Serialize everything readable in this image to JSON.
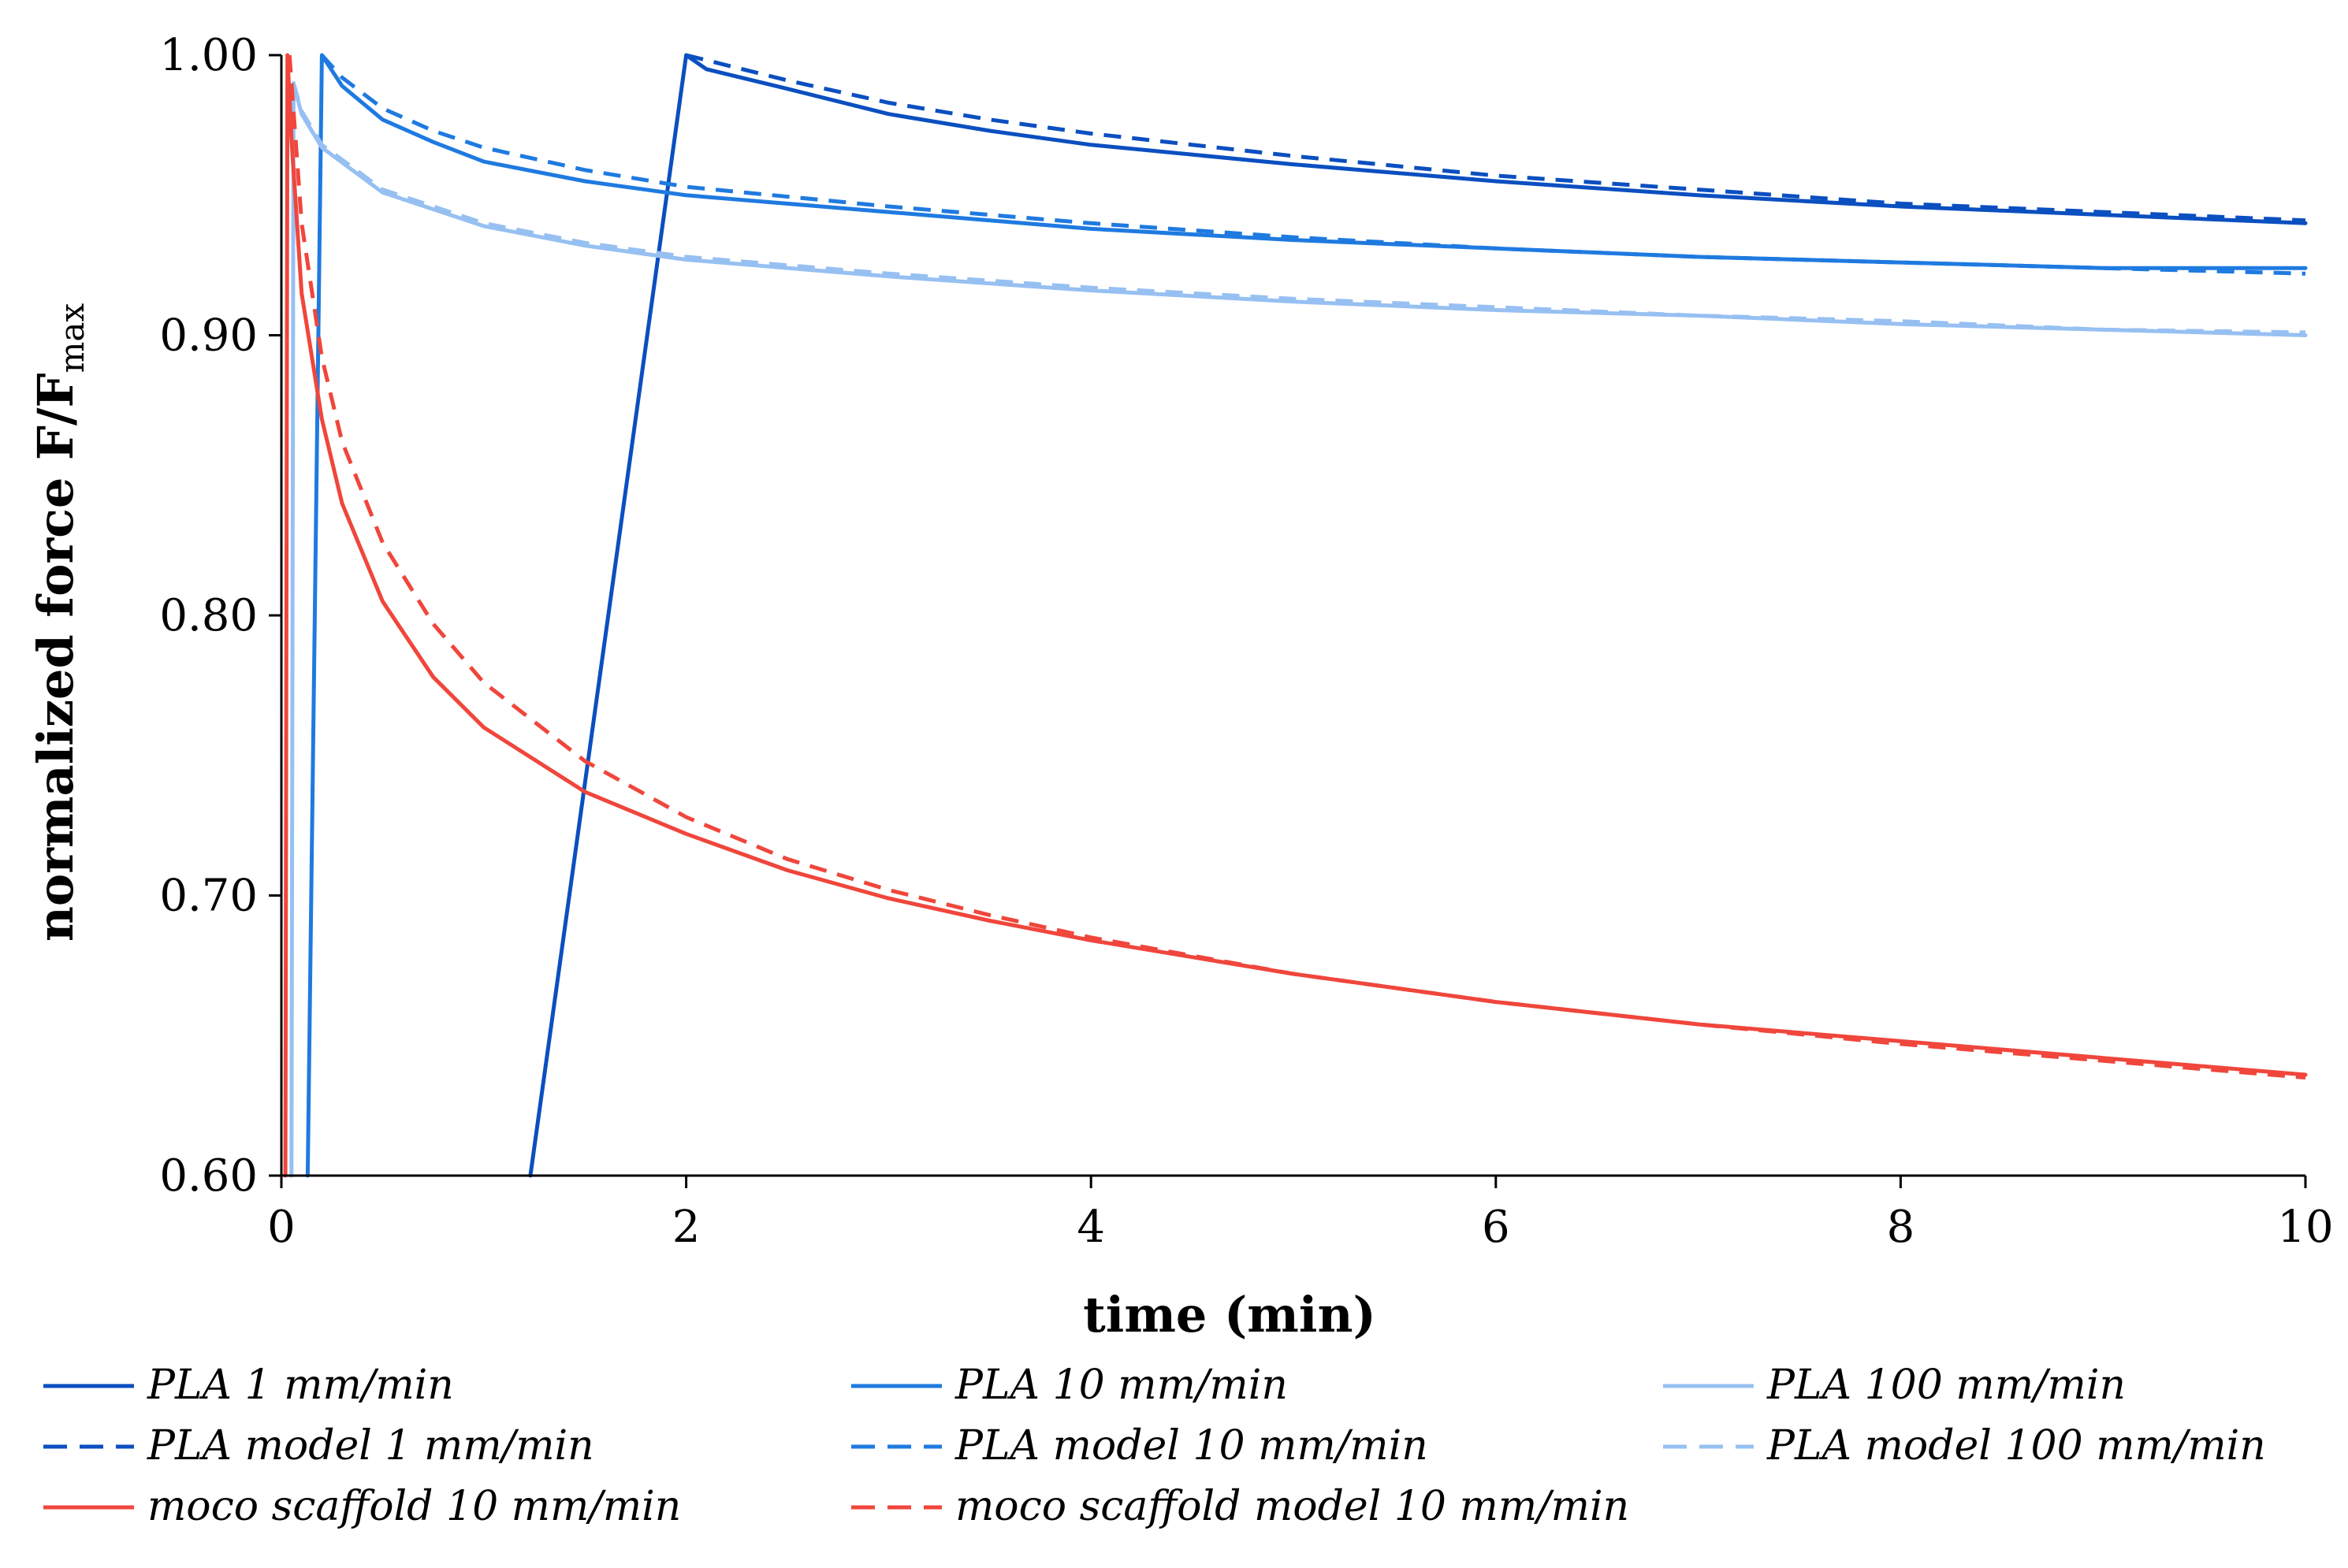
{
  "chart_data": {
    "type": "line",
    "title": "",
    "xlabel": "time (min)",
    "ylabel_main": "normalized force F/F",
    "ylabel_sub": "max",
    "xlim": [
      0,
      10
    ],
    "ylim": [
      0.6,
      1.0
    ],
    "xticks": [
      0,
      2,
      4,
      6,
      8,
      10
    ],
    "xtick_labels": [
      "0",
      "2",
      "4",
      "6",
      "8",
      "10"
    ],
    "yticks": [
      0.6,
      0.7,
      0.8,
      0.9,
      1.0
    ],
    "ytick_labels": [
      "0.60",
      "0.70",
      "0.80",
      "0.90",
      "1.00"
    ],
    "grid": false,
    "legend_position": "bottom",
    "series": [
      {
        "name": "PLA 1 mm/min",
        "color": "#0B4FC0",
        "dash": "solid",
        "points": [
          [
            1.23,
            0.6
          ],
          [
            2.0,
            1.0
          ],
          [
            2.1,
            0.995
          ],
          [
            2.5,
            0.988
          ],
          [
            3.0,
            0.979
          ],
          [
            3.5,
            0.973
          ],
          [
            4.0,
            0.968
          ],
          [
            5.0,
            0.961
          ],
          [
            6.0,
            0.955
          ],
          [
            7.0,
            0.95
          ],
          [
            8.0,
            0.946
          ],
          [
            9.0,
            0.943
          ],
          [
            10.0,
            0.94
          ]
        ]
      },
      {
        "name": "PLA 10 mm/min",
        "color": "#1F7AE0",
        "dash": "solid",
        "points": [
          [
            0.13,
            0.6
          ],
          [
            0.2,
            1.0
          ],
          [
            0.3,
            0.989
          ],
          [
            0.5,
            0.977
          ],
          [
            0.75,
            0.969
          ],
          [
            1.0,
            0.962
          ],
          [
            1.5,
            0.955
          ],
          [
            2.0,
            0.95
          ],
          [
            3.0,
            0.944
          ],
          [
            4.0,
            0.938
          ],
          [
            5.0,
            0.934
          ],
          [
            6.0,
            0.931
          ],
          [
            7.0,
            0.928
          ],
          [
            8.0,
            0.926
          ],
          [
            9.0,
            0.924
          ],
          [
            10.0,
            0.924
          ]
        ]
      },
      {
        "name": "PLA 100 mm/min",
        "color": "#97C0F2",
        "dash": "solid",
        "points": [
          [
            0.05,
            0.6
          ],
          [
            0.06,
            0.99
          ],
          [
            0.1,
            0.979
          ],
          [
            0.2,
            0.967
          ],
          [
            0.5,
            0.951
          ],
          [
            1.0,
            0.939
          ],
          [
            1.5,
            0.932
          ],
          [
            2.0,
            0.927
          ],
          [
            3.0,
            0.921
          ],
          [
            4.0,
            0.916
          ],
          [
            5.0,
            0.912
          ],
          [
            6.0,
            0.909
          ],
          [
            7.0,
            0.907
          ],
          [
            8.0,
            0.904
          ],
          [
            9.0,
            0.902
          ],
          [
            10.0,
            0.9
          ]
        ]
      },
      {
        "name": "PLA model 1 mm/min",
        "color": "#0B4FC0",
        "dash": "dashed",
        "points": [
          [
            2.0,
            1.0
          ],
          [
            2.5,
            0.991
          ],
          [
            3.0,
            0.983
          ],
          [
            3.5,
            0.977
          ],
          [
            4.0,
            0.972
          ],
          [
            5.0,
            0.964
          ],
          [
            6.0,
            0.957
          ],
          [
            7.0,
            0.952
          ],
          [
            8.0,
            0.947
          ],
          [
            9.0,
            0.944
          ],
          [
            10.0,
            0.941
          ]
        ]
      },
      {
        "name": "PLA model 10 mm/min",
        "color": "#1F7AE0",
        "dash": "dashed",
        "points": [
          [
            0.2,
            1.0
          ],
          [
            0.3,
            0.992
          ],
          [
            0.5,
            0.981
          ],
          [
            0.75,
            0.973
          ],
          [
            1.0,
            0.967
          ],
          [
            1.5,
            0.959
          ],
          [
            2.0,
            0.953
          ],
          [
            3.0,
            0.946
          ],
          [
            4.0,
            0.94
          ],
          [
            5.0,
            0.935
          ],
          [
            6.0,
            0.931
          ],
          [
            7.0,
            0.928
          ],
          [
            8.0,
            0.926
          ],
          [
            9.0,
            0.924
          ],
          [
            10.0,
            0.922
          ]
        ]
      },
      {
        "name": "PLA model 100 mm/min",
        "color": "#97C0F2",
        "dash": "dashed",
        "points": [
          [
            0.06,
            0.99
          ],
          [
            0.1,
            0.98
          ],
          [
            0.2,
            0.968
          ],
          [
            0.5,
            0.952
          ],
          [
            1.0,
            0.94
          ],
          [
            1.5,
            0.933
          ],
          [
            2.0,
            0.928
          ],
          [
            3.0,
            0.922
          ],
          [
            4.0,
            0.917
          ],
          [
            5.0,
            0.913
          ],
          [
            6.0,
            0.91
          ],
          [
            7.0,
            0.907
          ],
          [
            8.0,
            0.905
          ],
          [
            9.0,
            0.902
          ],
          [
            10.0,
            0.901
          ]
        ]
      },
      {
        "name": "moco scaffold 10 mm/min",
        "color": "#F0463C",
        "dash": "solid",
        "points": [
          [
            0.02,
            0.6
          ],
          [
            0.03,
            1.0
          ],
          [
            0.05,
            0.97
          ],
          [
            0.1,
            0.915
          ],
          [
            0.2,
            0.87
          ],
          [
            0.3,
            0.84
          ],
          [
            0.5,
            0.805
          ],
          [
            0.75,
            0.778
          ],
          [
            1.0,
            0.76
          ],
          [
            1.5,
            0.737
          ],
          [
            2.0,
            0.722
          ],
          [
            2.5,
            0.709
          ],
          [
            3.0,
            0.699
          ],
          [
            3.5,
            0.691
          ],
          [
            4.0,
            0.684
          ],
          [
            5.0,
            0.672
          ],
          [
            6.0,
            0.662
          ],
          [
            7.0,
            0.654
          ],
          [
            8.0,
            0.648
          ],
          [
            9.0,
            0.642
          ],
          [
            10.0,
            0.636
          ]
        ]
      },
      {
        "name": "moco scaffold model 10 mm/min",
        "color": "#F0463C",
        "dash": "dashed",
        "points": [
          [
            0.04,
            1.0
          ],
          [
            0.1,
            0.94
          ],
          [
            0.2,
            0.892
          ],
          [
            0.3,
            0.862
          ],
          [
            0.5,
            0.826
          ],
          [
            0.75,
            0.797
          ],
          [
            1.0,
            0.776
          ],
          [
            1.5,
            0.748
          ],
          [
            2.0,
            0.728
          ],
          [
            2.5,
            0.713
          ],
          [
            3.0,
            0.702
          ],
          [
            3.5,
            0.693
          ],
          [
            4.0,
            0.685
          ],
          [
            5.0,
            0.672
          ],
          [
            6.0,
            0.662
          ],
          [
            7.0,
            0.654
          ],
          [
            8.0,
            0.647
          ],
          [
            9.0,
            0.641
          ],
          [
            10.0,
            0.635
          ]
        ]
      }
    ]
  }
}
